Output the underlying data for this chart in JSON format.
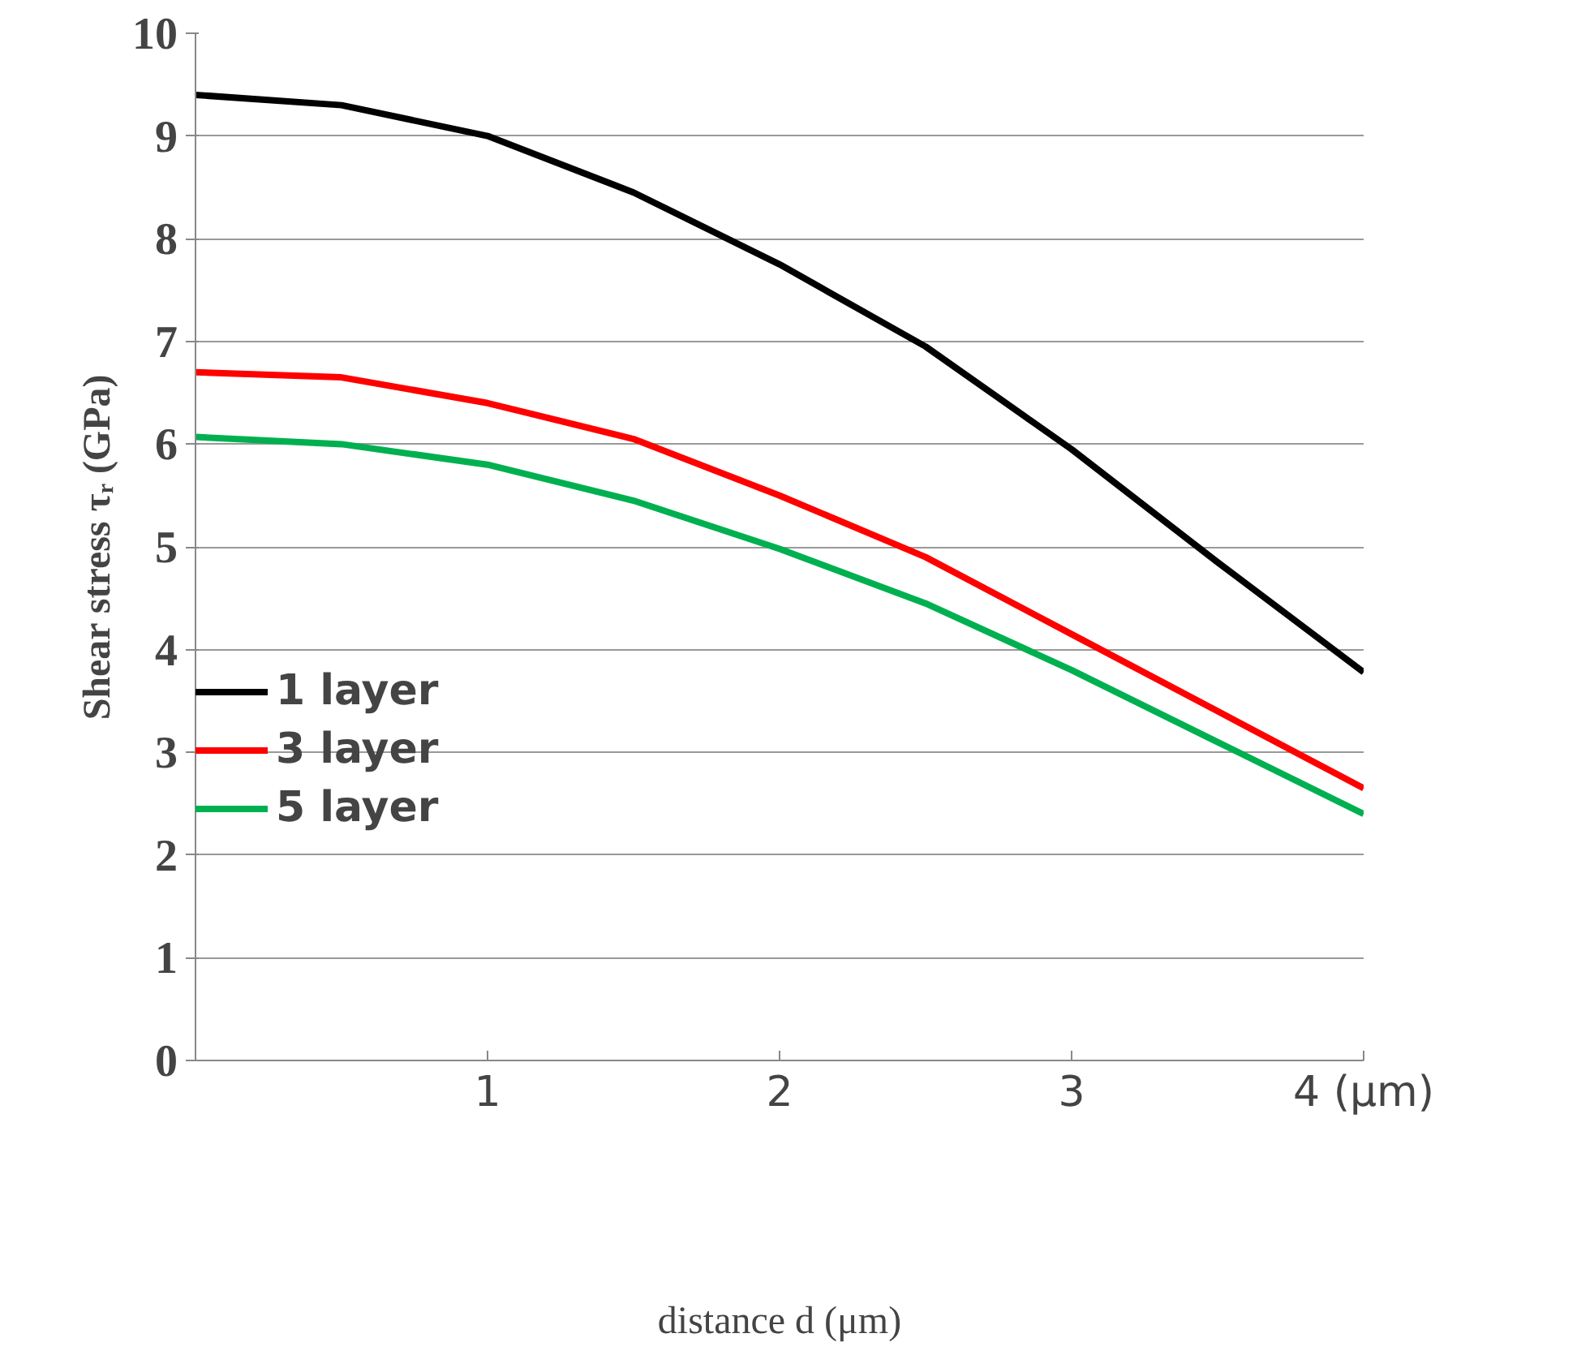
{
  "chart_data": {
    "type": "line",
    "xlabel": "distance d (μm)",
    "ylabel": "Shear stress τᵣ (GPa)",
    "x": [
      0,
      0.5,
      1,
      1.5,
      2,
      2.5,
      3,
      3.5,
      4
    ],
    "series": [
      {
        "name": "1 layer",
        "color": "#000000",
        "values": [
          9.4,
          9.3,
          9.0,
          8.45,
          7.75,
          6.95,
          5.95,
          4.85,
          3.78
        ]
      },
      {
        "name": "3 layer",
        "color": "#ff0000",
        "values": [
          6.7,
          6.65,
          6.4,
          6.05,
          5.5,
          4.9,
          4.15,
          3.4,
          2.65
        ]
      },
      {
        "name": "5 layer",
        "color": "#00b050",
        "values": [
          6.07,
          6.0,
          5.8,
          5.45,
          4.98,
          4.45,
          3.8,
          3.1,
          2.4
        ]
      }
    ],
    "xlim": [
      0,
      4
    ],
    "xticks": [
      {
        "value": 0,
        "label": null
      },
      1,
      2,
      3,
      {
        "value": 4,
        "label": "4 (μm)"
      }
    ],
    "ylim": [
      0,
      10
    ],
    "yticks": [
      0,
      1,
      2,
      3,
      4,
      5,
      6,
      7,
      8,
      9,
      10
    ],
    "grid": "y",
    "legend": "left",
    "marker": "none",
    "line_style": "solid"
  }
}
